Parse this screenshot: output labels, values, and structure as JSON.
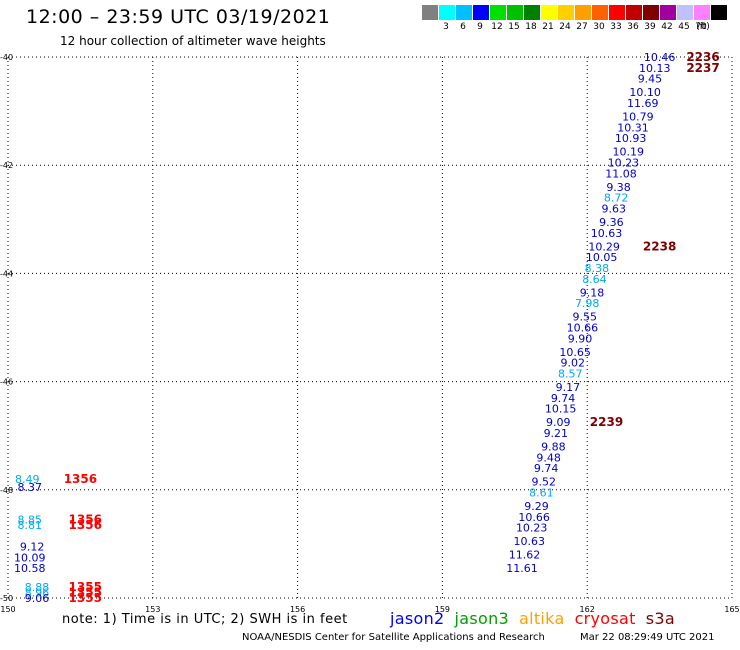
{
  "header": {
    "title": "12:00 – 23:59 UTC 03/19/2021",
    "subtitle": "12 hour collection of altimeter wave heights"
  },
  "legend": {
    "unit": "(ft)",
    "bins": [
      {
        "color": "#808080",
        "label": ""
      },
      {
        "color": "#00ffff",
        "label": "3"
      },
      {
        "color": "#00c0ff",
        "label": "6"
      },
      {
        "color": "#0000ff",
        "label": "9"
      },
      {
        "color": "#00e000",
        "label": "12"
      },
      {
        "color": "#00c000",
        "label": "15"
      },
      {
        "color": "#008000",
        "label": "18"
      },
      {
        "color": "#ffff00",
        "label": "21"
      },
      {
        "color": "#ffd000",
        "label": "24"
      },
      {
        "color": "#ffa000",
        "label": "27"
      },
      {
        "color": "#ff6000",
        "label": "30"
      },
      {
        "color": "#ff0000",
        "label": "33"
      },
      {
        "color": "#c00000",
        "label": "36"
      },
      {
        "color": "#800000",
        "label": "39"
      },
      {
        "color": "#a000a0",
        "label": "42"
      },
      {
        "color": "#c0c0ff",
        "label": "45"
      },
      {
        "color": "#ff80ff",
        "label": "70"
      },
      {
        "color": "#000000",
        "label": ""
      }
    ]
  },
  "chart_data": {
    "type": "scatter",
    "title": "12:00 – 23:59 UTC 03/19/2021",
    "xlim": [
      150,
      165
    ],
    "ylim": [
      -50,
      -40
    ],
    "x_ticks": [
      "150",
      "153",
      "156",
      "159",
      "162",
      "165"
    ],
    "y_ticks": [
      "-40",
      "-42",
      "-44",
      "-46",
      "-48",
      "-50"
    ],
    "grid": true,
    "series": [
      {
        "name": "jason3",
        "color": "#0000cc",
        "points": [
          {
            "x": 163.5,
            "y": -40.0,
            "label": "10.46"
          },
          {
            "x": 163.4,
            "y": -40.2,
            "label": "10.13"
          },
          {
            "x": 163.3,
            "y": -40.4,
            "label": "9.45"
          },
          {
            "x": 163.2,
            "y": -40.65,
            "label": "10.10"
          },
          {
            "x": 163.15,
            "y": -40.85,
            "label": "11.69"
          },
          {
            "x": 163.05,
            "y": -41.1,
            "label": "10.79"
          },
          {
            "x": 162.95,
            "y": -41.3,
            "label": "10.31"
          },
          {
            "x": 162.9,
            "y": -41.5,
            "label": "10.93"
          },
          {
            "x": 162.85,
            "y": -41.75,
            "label": "10.19"
          },
          {
            "x": 162.75,
            "y": -41.95,
            "label": "10.23"
          },
          {
            "x": 162.7,
            "y": -42.15,
            "label": "11.08"
          },
          {
            "x": 162.65,
            "y": -42.4,
            "label": "9.38"
          },
          {
            "x": 162.6,
            "y": -42.6,
            "label": "8.72"
          },
          {
            "x": 162.55,
            "y": -42.8,
            "label": "9.63"
          },
          {
            "x": 162.5,
            "y": -43.05,
            "label": "9.36"
          },
          {
            "x": 162.4,
            "y": -43.25,
            "label": "10.63"
          },
          {
            "x": 162.35,
            "y": -43.5,
            "label": "10.29"
          },
          {
            "x": 162.3,
            "y": -43.7,
            "label": "10.05"
          },
          {
            "x": 162.2,
            "y": -43.9,
            "label": "8.38"
          },
          {
            "x": 162.15,
            "y": -44.1,
            "label": "8.64"
          },
          {
            "x": 162.1,
            "y": -44.35,
            "label": "9.18"
          },
          {
            "x": 162.0,
            "y": -44.55,
            "label": "7.98"
          },
          {
            "x": 161.95,
            "y": -44.8,
            "label": "9.55"
          },
          {
            "x": 161.9,
            "y": -45.0,
            "label": "10.66"
          },
          {
            "x": 161.85,
            "y": -45.2,
            "label": "9.90"
          },
          {
            "x": 161.75,
            "y": -45.45,
            "label": "10.65"
          },
          {
            "x": 161.7,
            "y": -45.65,
            "label": "9.02"
          },
          {
            "x": 161.65,
            "y": -45.85,
            "label": "8.57"
          },
          {
            "x": 161.6,
            "y": -46.1,
            "label": "9.17"
          },
          {
            "x": 161.5,
            "y": -46.3,
            "label": "9.74"
          },
          {
            "x": 161.45,
            "y": -46.5,
            "label": "10.15"
          },
          {
            "x": 161.4,
            "y": -46.75,
            "label": "9.09"
          },
          {
            "x": 161.35,
            "y": -46.95,
            "label": "9.21"
          },
          {
            "x": 161.3,
            "y": -47.2,
            "label": "9.88"
          },
          {
            "x": 161.2,
            "y": -47.4,
            "label": "9.48"
          },
          {
            "x": 161.15,
            "y": -47.6,
            "label": "9.74"
          },
          {
            "x": 161.1,
            "y": -47.85,
            "label": "9.52"
          },
          {
            "x": 161.05,
            "y": -48.05,
            "label": "8.61"
          },
          {
            "x": 160.95,
            "y": -48.3,
            "label": "9.29"
          },
          {
            "x": 160.9,
            "y": -48.5,
            "label": "10.66"
          },
          {
            "x": 160.85,
            "y": -48.7,
            "label": "10.23"
          },
          {
            "x": 160.8,
            "y": -48.95,
            "label": "10.63"
          },
          {
            "x": 160.7,
            "y": -49.2,
            "label": "11.62"
          },
          {
            "x": 160.65,
            "y": -49.45,
            "label": "11.61"
          }
        ]
      },
      {
        "name": "jason3 (left edge)",
        "color": "#0000cc",
        "points": [
          {
            "x": 150.4,
            "y": -47.8,
            "label": "8.49"
          },
          {
            "x": 150.45,
            "y": -47.95,
            "label": "8.37"
          },
          {
            "x": 150.45,
            "y": -48.55,
            "label": "8.85"
          },
          {
            "x": 150.45,
            "y": -48.65,
            "label": "8.81"
          },
          {
            "x": 150.5,
            "y": -49.05,
            "label": "9.12"
          },
          {
            "x": 150.45,
            "y": -49.25,
            "label": "10.09"
          },
          {
            "x": 150.45,
            "y": -49.45,
            "label": "10.58"
          },
          {
            "x": 150.6,
            "y": -49.8,
            "label": "8.88"
          },
          {
            "x": 150.6,
            "y": -49.9,
            "label": "8.96"
          },
          {
            "x": 150.6,
            "y": -50.0,
            "label": "9.06"
          }
        ]
      }
    ],
    "time_labels": [
      {
        "x": 164.4,
        "y": -40.0,
        "label": "2236",
        "color": "#800000"
      },
      {
        "x": 164.4,
        "y": -40.2,
        "label": "2237",
        "color": "#800000"
      },
      {
        "x": 163.5,
        "y": -43.5,
        "label": "2238",
        "color": "#800000"
      },
      {
        "x": 162.4,
        "y": -46.75,
        "label": "2239",
        "color": "#800000"
      },
      {
        "x": 151.5,
        "y": -47.8,
        "label": "1356",
        "color": "#ff0000"
      },
      {
        "x": 151.6,
        "y": -48.55,
        "label": "1356",
        "color": "#ff0000"
      },
      {
        "x": 151.6,
        "y": -48.65,
        "label": "1356",
        "color": "#ff0000"
      },
      {
        "x": 151.6,
        "y": -49.8,
        "label": "1355",
        "color": "#ff0000"
      },
      {
        "x": 151.6,
        "y": -49.9,
        "label": "1355",
        "color": "#ff0000"
      },
      {
        "x": 151.6,
        "y": -50.0,
        "label": "1355",
        "color": "#ff0000"
      }
    ]
  },
  "note": "note: 1) Time is in UTC; 2) SWH is in feet",
  "missions": [
    {
      "name": "jason2",
      "color": "#0000ff"
    },
    {
      "name": "jason3",
      "color": "#00a000"
    },
    {
      "name": "altika",
      "color": "#ffa000"
    },
    {
      "name": "cryosat",
      "color": "#ff0000"
    },
    {
      "name": "s3a",
      "color": "#800000"
    }
  ],
  "footer": {
    "center": "NOAA/NESDIS Center for Satellite Applications and Research",
    "stamp": "Mar 22 08:29:49 UTC 2021"
  }
}
